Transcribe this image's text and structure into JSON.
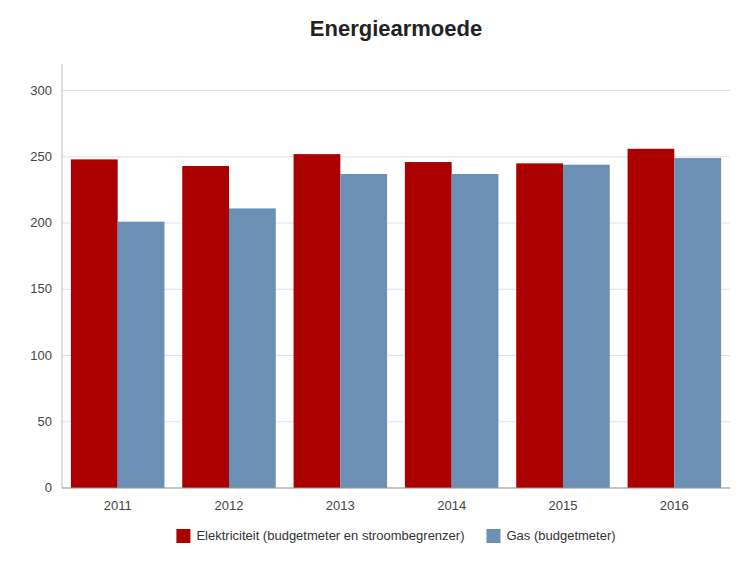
{
  "chart_data": {
    "type": "bar",
    "title": "Energiearmoede",
    "categories": [
      "2011",
      "2012",
      "2013",
      "2014",
      "2015",
      "2016"
    ],
    "series": [
      {
        "name": "Elektriciteit (budgetmeter en stroombegrenzer)",
        "color": "#AA0000",
        "values": [
          248,
          243,
          252,
          246,
          245,
          256
        ]
      },
      {
        "name": "Gas (budgetmeter)",
        "color": "#6B8FB5",
        "values": [
          201,
          211,
          237,
          237,
          244,
          249
        ]
      }
    ],
    "ylim": [
      0,
      320
    ],
    "yticks": [
      0,
      50,
      100,
      150,
      200,
      250,
      300
    ],
    "grid": true,
    "legend": "bottom"
  }
}
